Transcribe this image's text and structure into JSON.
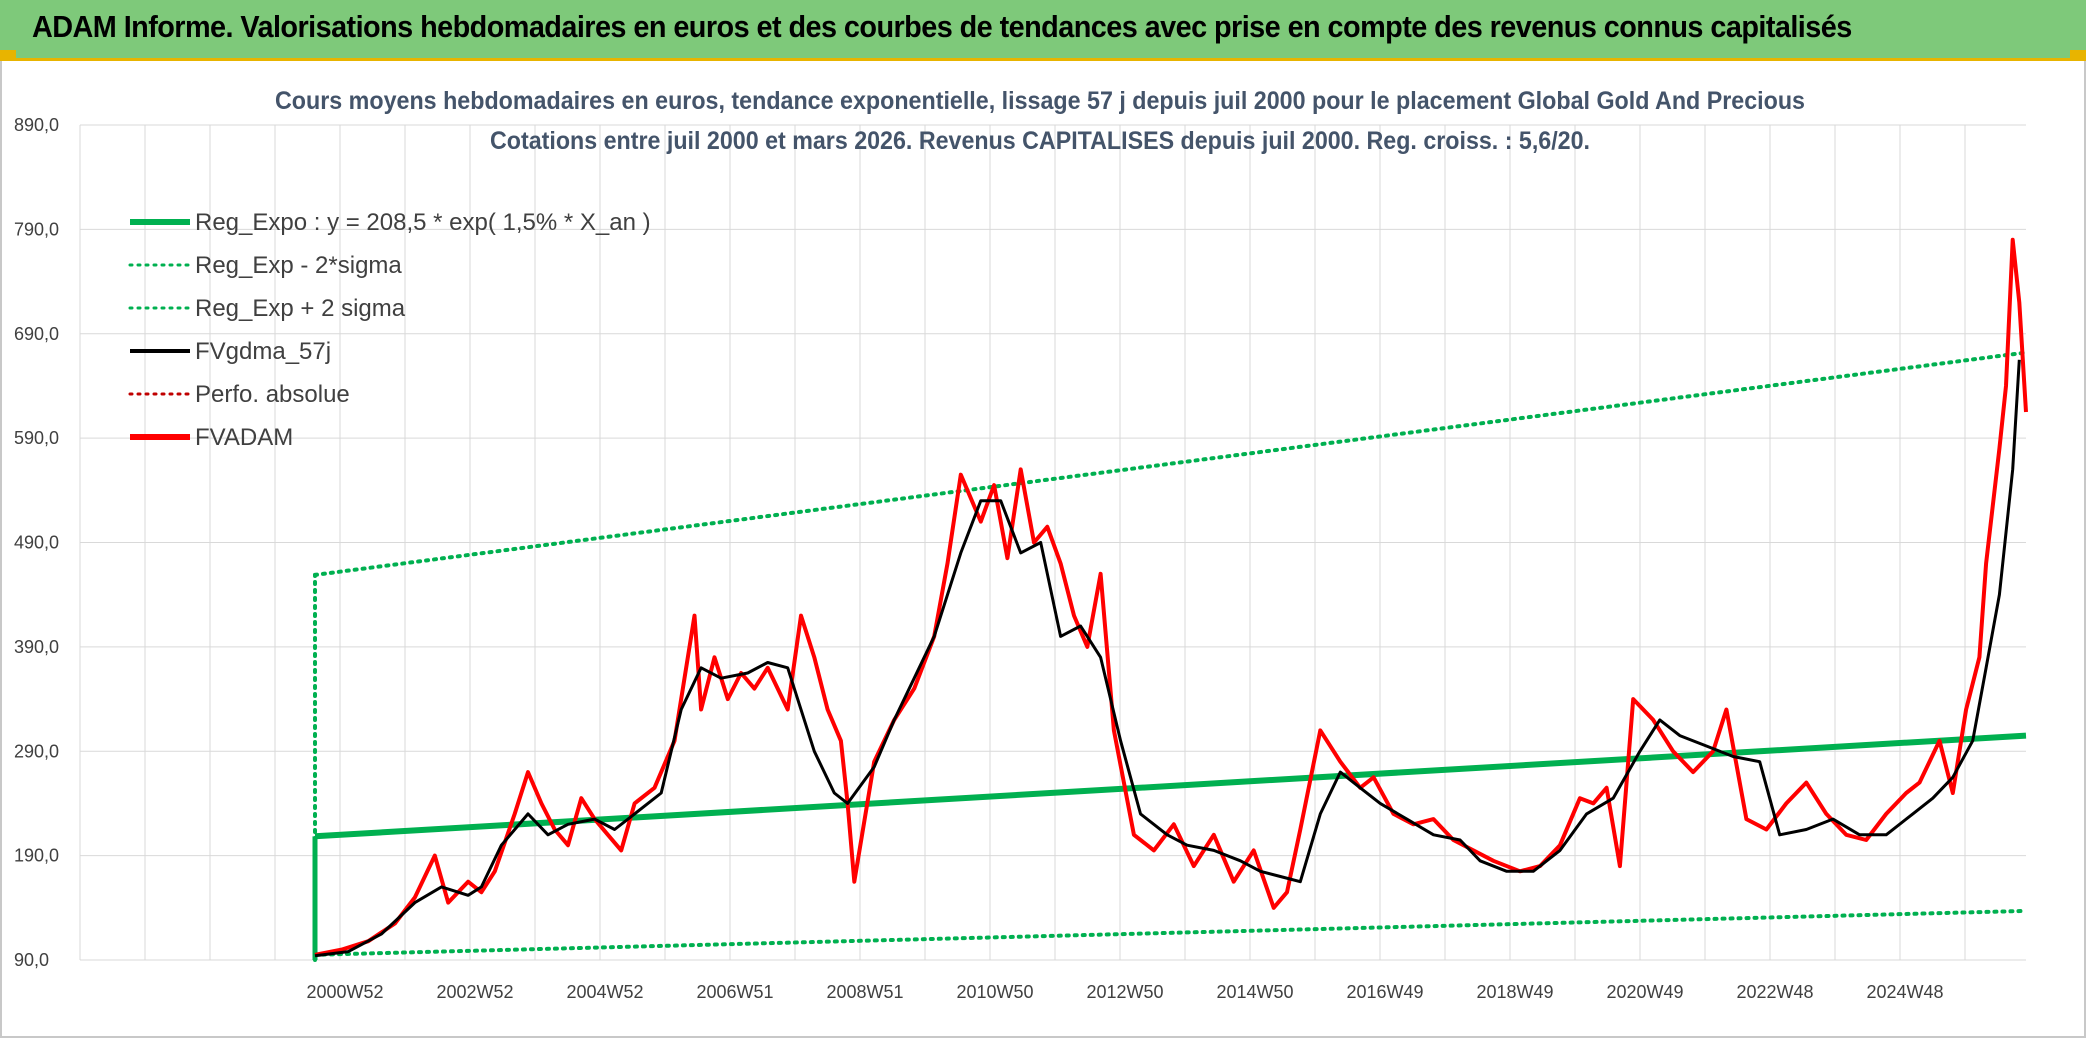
{
  "banner": {
    "title": "ADAM Informe. Valorisations hebdomadaires en euros et des courbes de tendances avec prise en compte des revenus connus capitalisés"
  },
  "chart_data": {
    "type": "line",
    "title_line1": "Cours moyens hebdomadaires en euros, tendance exponentielle, lissage 57 j depuis juil 2000 pour le placement Global Gold And Precious",
    "title_line2": "Cotations entre juil 2000 et mars 2026. Revenus CAPITALISES depuis juil 2000. Reg. croiss. : 5,6/20.",
    "y_ticks": [
      "890,0",
      "790,0",
      "690,0",
      "590,0",
      "490,0",
      "390,0",
      "290,0",
      "190,0",
      "90,0"
    ],
    "ylim": [
      90,
      890
    ],
    "x_ticks": [
      "2000W52",
      "2002W52",
      "2004W52",
      "2006W51",
      "2008W51",
      "2010W50",
      "2012W50",
      "2014W50",
      "2016W49",
      "2018W49",
      "2020W49",
      "2022W48",
      "2024W48"
    ],
    "xlim": [
      2000.5,
      2026.2
    ],
    "grid": true,
    "legend_position": "top-left",
    "colors": {
      "reg": "#00b050",
      "fv": "#000000",
      "perfo": "#c00000",
      "adam": "#ff0000"
    },
    "series": [
      {
        "name": "Reg_Expo : y = 208,5 * exp( 1,5% *  X_an )",
        "style": "solid-thick",
        "color": "#00b050",
        "x": [
          2000.5,
          2026.2
        ],
        "y": [
          208.5,
          305
        ]
      },
      {
        "name": "Reg_Exp - 2*sigma",
        "style": "dotted",
        "color": "#00b050",
        "x": [
          2000.5,
          2026.2
        ],
        "y": [
          95,
          137
        ]
      },
      {
        "name": "Reg_Exp + 2 sigma",
        "style": "dotted",
        "color": "#00b050",
        "x": [
          2000.5,
          2026.2
        ],
        "y": [
          459,
          672
        ]
      },
      {
        "name": "FVgdma_57j",
        "style": "solid",
        "color": "#000000",
        "x": [
          2000.5,
          2001.0,
          2001.5,
          2002.0,
          2002.4,
          2002.8,
          2003.0,
          2003.3,
          2003.7,
          2004.0,
          2004.3,
          2004.7,
          2005.0,
          2005.3,
          2005.7,
          2006.0,
          2006.3,
          2006.6,
          2007.0,
          2007.3,
          2007.6,
          2008.0,
          2008.3,
          2008.5,
          2008.9,
          2009.2,
          2009.5,
          2009.8,
          2010.2,
          2010.5,
          2010.8,
          2011.1,
          2011.4,
          2011.7,
          2012.0,
          2012.3,
          2012.6,
          2012.9,
          2013.3,
          2013.6,
          2014.0,
          2014.4,
          2014.7,
          2015.0,
          2015.3,
          2015.6,
          2015.9,
          2016.2,
          2016.5,
          2016.9,
          2017.3,
          2017.7,
          2018.0,
          2018.4,
          2018.8,
          2019.2,
          2019.6,
          2020.0,
          2020.4,
          2020.7,
          2021.0,
          2021.4,
          2021.8,
          2022.2,
          2022.5,
          2022.9,
          2023.3,
          2023.7,
          2024.1,
          2024.5,
          2024.8,
          2025.1,
          2025.4,
          2025.6,
          2025.8,
          2026.0,
          2026.1
        ],
        "y": [
          94,
          98,
          115,
          145,
          160,
          152,
          160,
          200,
          230,
          210,
          220,
          225,
          215,
          230,
          250,
          330,
          370,
          360,
          365,
          375,
          370,
          290,
          250,
          240,
          275,
          320,
          360,
          400,
          480,
          530,
          530,
          480,
          490,
          400,
          410,
          380,
          300,
          230,
          210,
          200,
          195,
          185,
          175,
          170,
          165,
          230,
          270,
          255,
          240,
          225,
          210,
          205,
          185,
          175,
          175,
          195,
          230,
          245,
          290,
          320,
          305,
          295,
          285,
          280,
          210,
          215,
          225,
          210,
          210,
          230,
          245,
          265,
          300,
          370,
          440,
          560,
          665
        ]
      },
      {
        "name": "Perfo. absolue",
        "style": "dotted",
        "color": "#c00000",
        "x": [],
        "y": []
      },
      {
        "name": "FVADAM",
        "style": "solid-thick",
        "color": "#ff0000",
        "x": [
          2000.5,
          2000.9,
          2001.3,
          2001.7,
          2002.0,
          2002.3,
          2002.5,
          2002.8,
          2003.0,
          2003.2,
          2003.5,
          2003.7,
          2003.9,
          2004.1,
          2004.3,
          2004.5,
          2004.7,
          2004.9,
          2005.1,
          2005.3,
          2005.6,
          2005.9,
          2006.2,
          2006.3,
          2006.5,
          2006.7,
          2006.9,
          2007.1,
          2007.3,
          2007.6,
          2007.8,
          2008.0,
          2008.2,
          2008.4,
          2008.5,
          2008.6,
          2008.9,
          2009.2,
          2009.5,
          2009.8,
          2010.0,
          2010.2,
          2010.5,
          2010.7,
          2010.9,
          2011.1,
          2011.3,
          2011.5,
          2011.7,
          2011.9,
          2012.1,
          2012.3,
          2012.5,
          2012.8,
          2013.1,
          2013.4,
          2013.7,
          2014.0,
          2014.3,
          2014.6,
          2014.9,
          2015.1,
          2015.3,
          2015.6,
          2015.9,
          2016.2,
          2016.4,
          2016.7,
          2017.0,
          2017.3,
          2017.6,
          2017.9,
          2018.2,
          2018.6,
          2018.9,
          2019.2,
          2019.5,
          2019.7,
          2019.9,
          2020.1,
          2020.3,
          2020.6,
          2020.9,
          2021.2,
          2021.5,
          2021.7,
          2022.0,
          2022.3,
          2022.6,
          2022.9,
          2023.2,
          2023.5,
          2023.8,
          2024.1,
          2024.4,
          2024.6,
          2024.9,
          2025.1,
          2025.3,
          2025.5,
          2025.6,
          2025.8,
          2025.9,
          2026.0,
          2026.1,
          2026.2
        ],
        "y": [
          95,
          100,
          108,
          125,
          150,
          190,
          145,
          165,
          155,
          175,
          230,
          270,
          240,
          215,
          200,
          245,
          225,
          210,
          195,
          240,
          255,
          300,
          420,
          330,
          380,
          340,
          365,
          350,
          370,
          330,
          420,
          380,
          330,
          300,
          240,
          165,
          280,
          320,
          350,
          400,
          470,
          555,
          510,
          545,
          475,
          560,
          490,
          505,
          470,
          420,
          390,
          460,
          310,
          210,
          195,
          220,
          180,
          210,
          165,
          195,
          140,
          155,
          215,
          310,
          280,
          255,
          265,
          230,
          220,
          225,
          205,
          195,
          185,
          175,
          180,
          200,
          245,
          240,
          255,
          180,
          340,
          320,
          290,
          270,
          290,
          330,
          225,
          215,
          240,
          260,
          230,
          210,
          205,
          230,
          250,
          260,
          300,
          250,
          330,
          380,
          470,
          580,
          640,
          780,
          720,
          615
        ]
      }
    ]
  }
}
